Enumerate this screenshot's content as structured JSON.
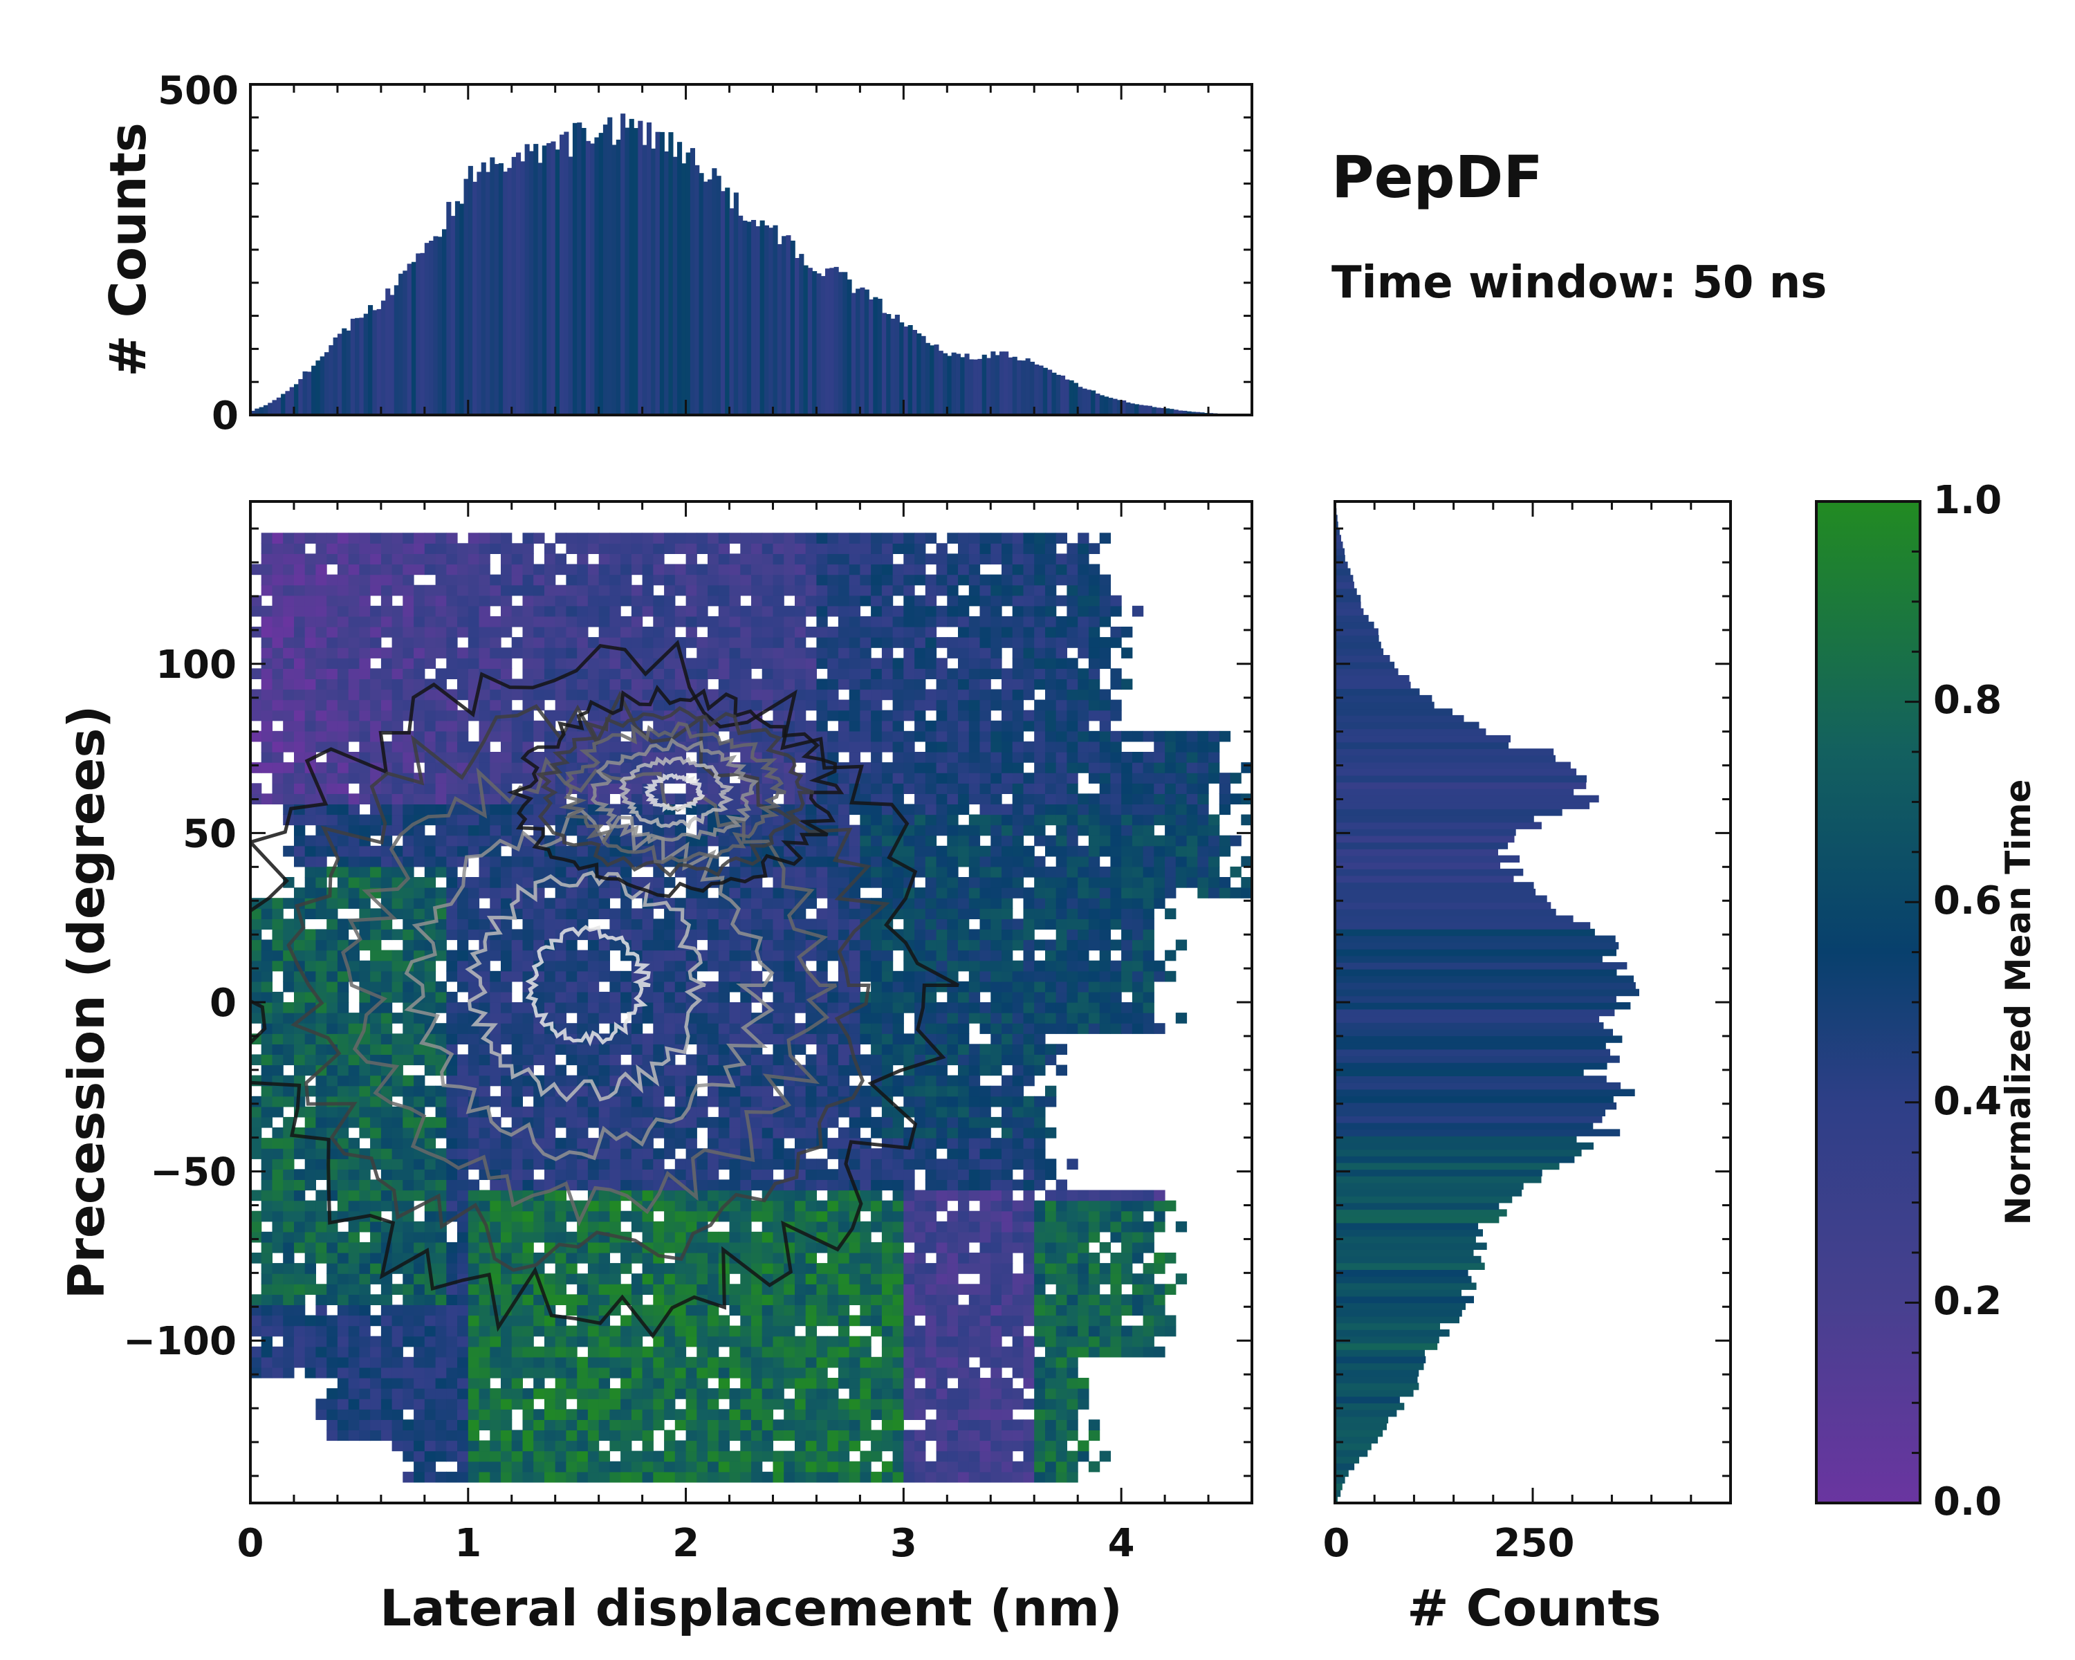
{
  "title": "PepDF",
  "subtitle": "Time window: 50 ns",
  "chart_data": [
    {
      "type": "heatmap",
      "name": "joint distribution",
      "xlabel": "Lateral displacement (nm)",
      "ylabel": "Precession (degrees)",
      "xlim": [
        0,
        4.6
      ],
      "ylim": [
        -148,
        148
      ],
      "xticks": [
        0,
        1,
        2,
        3,
        4
      ],
      "xtick_labels": [
        "0",
        "1",
        "2",
        "3",
        "4"
      ],
      "yticks": [
        -100,
        -50,
        0,
        50,
        100
      ],
      "ytick_labels": [
        "−100",
        "−50",
        "0",
        "50",
        "100"
      ],
      "color_by": "Normalized Mean Time",
      "contour_levels": 6,
      "grid": false
    },
    {
      "type": "bar",
      "name": "top marginal histogram",
      "orientation": "vertical",
      "xlim": [
        0,
        4.6
      ],
      "ylim": [
        0,
        500
      ],
      "ylabel": "# Counts",
      "yticks": [
        0,
        500
      ],
      "ytick_labels": [
        "0",
        "500"
      ],
      "profile_x": [
        0.0,
        0.1,
        0.2,
        0.3,
        0.4,
        0.5,
        0.6,
        0.7,
        0.8,
        0.9,
        1.0,
        1.1,
        1.2,
        1.3,
        1.4,
        1.5,
        1.6,
        1.7,
        1.8,
        1.9,
        2.0,
        2.1,
        2.2,
        2.3,
        2.4,
        2.5,
        2.6,
        2.7,
        2.8,
        2.9,
        3.0,
        3.1,
        3.2,
        3.3,
        3.4,
        3.5,
        3.6,
        3.7,
        3.8,
        3.9,
        4.0,
        4.1,
        4.2,
        4.3,
        4.4,
        4.5,
        4.6
      ],
      "profile_counts": [
        5,
        20,
        45,
        80,
        120,
        145,
        170,
        210,
        250,
        300,
        355,
        375,
        380,
        395,
        405,
        420,
        430,
        432,
        425,
        415,
        400,
        370,
        335,
        300,
        275,
        250,
        225,
        210,
        190,
        165,
        135,
        115,
        95,
        88,
        92,
        90,
        78,
        62,
        45,
        32,
        22,
        15,
        10,
        6,
        3,
        1,
        0
      ]
    },
    {
      "type": "bar",
      "name": "right marginal histogram",
      "orientation": "horizontal",
      "xlim": [
        0,
        500
      ],
      "ylim": [
        -148,
        148
      ],
      "xlabel": "# Counts",
      "xticks": [
        0,
        250
      ],
      "xtick_labels": [
        "0",
        "250"
      ],
      "profile_y": [
        -148,
        -140,
        -130,
        -120,
        -110,
        -100,
        -90,
        -80,
        -70,
        -60,
        -50,
        -40,
        -30,
        -20,
        -10,
        0,
        5,
        10,
        20,
        30,
        40,
        50,
        60,
        70,
        80,
        90,
        100,
        110,
        120,
        130,
        140,
        148
      ],
      "profile_counts": [
        2,
        15,
        50,
        80,
        110,
        130,
        160,
        175,
        190,
        205,
        260,
        330,
        370,
        330,
        345,
        380,
        395,
        360,
        335,
        270,
        215,
        225,
        320,
        300,
        190,
        120,
        70,
        50,
        30,
        15,
        5,
        0
      ]
    },
    {
      "type": "colorbar",
      "name": "time colorbar",
      "label": "Normalized Mean Time",
      "range": [
        0,
        1
      ],
      "ticks": [
        "0.0",
        "0.2",
        "0.4",
        "0.6",
        "0.8",
        "1.0"
      ],
      "colors": [
        "#6a35a0",
        "#47408f",
        "#2e3f87",
        "#08406d",
        "#13605f",
        "#228b22"
      ]
    }
  ]
}
